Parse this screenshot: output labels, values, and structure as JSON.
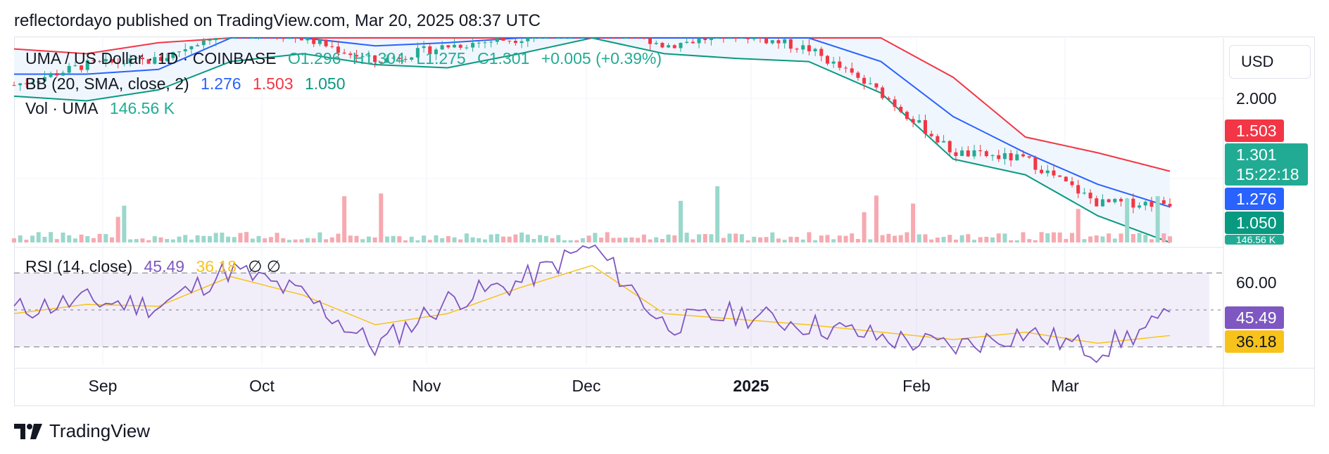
{
  "header": {
    "text": "reflectordayo published on TradingView.com, Mar 20, 2025 08:37 UTC"
  },
  "legend": {
    "symbol": "UMA / US Dollar · 1D · COINBASE",
    "open": "O1.296",
    "high": "H1.304",
    "low": "L1.275",
    "close": "C1.301",
    "change": "+0.005 (+0.39%)",
    "bb_label": "BB (20, SMA, close, 2)",
    "bb_basis": "1.276",
    "bb_upper": "1.503",
    "bb_lower": "1.050",
    "vol_label": "Vol · UMA",
    "vol_value": "146.56 K",
    "rsi_label": "RSI (14, close)",
    "rsi_value": "45.49",
    "rsi_ma": "36.18",
    "rsi_extra": "∅ ∅"
  },
  "currency": "USD",
  "price_axis": {
    "level_1": "2.000",
    "level_2": "60.00"
  },
  "price_tags": {
    "upper": "1.503",
    "last": "1.301",
    "countdown": "15:22:18",
    "basis": "1.276",
    "lower": "1.050",
    "volume": "146.56 K",
    "rsi": "45.49",
    "rsi_ma": "36.18"
  },
  "x_axis": [
    "Sep",
    "Oct",
    "Nov",
    "Dec",
    "2025",
    "Feb",
    "Mar"
  ],
  "colors": {
    "up": "#22ab94",
    "down": "#f23645",
    "basis": "#2962ff",
    "upper": "#f23645",
    "lower": "#089981",
    "rsi": "#7e57c2",
    "rsi_ma": "#f7c31b",
    "band_fill": "#f0f6fd"
  },
  "footer": {
    "brand": "TradingView"
  },
  "chart_data": {
    "type": "line",
    "title": "UMA / US Dollar · 1D · COINBASE",
    "x_ticks": [
      "Sep",
      "Oct",
      "Nov",
      "Dec",
      "2025",
      "Feb",
      "Mar"
    ],
    "price_range": [
      1.05,
      2.35
    ],
    "rsi_range": [
      20,
      80
    ],
    "series": [
      {
        "name": "Price",
        "x": [
          "Aug 20",
          "Sep 1",
          "Sep 15",
          "Oct 1",
          "Oct 15",
          "Nov 1",
          "Nov 15",
          "Dec 1",
          "Dec 8",
          "Dec 15",
          "Jan 1",
          "Jan 15",
          "Feb 1",
          "Feb 8",
          "Feb 25",
          "Mar 10",
          "Mar 20"
        ],
        "values": [
          2.05,
          2.18,
          2.21,
          2.42,
          2.35,
          2.2,
          2.3,
          2.35,
          2.5,
          2.3,
          2.38,
          2.28,
          2.0,
          1.62,
          1.58,
          1.3,
          1.301
        ]
      },
      {
        "name": "BB Upper",
        "values": [
          2.28,
          2.25,
          2.32,
          2.6,
          2.55,
          2.45,
          2.5,
          2.6,
          2.8,
          2.6,
          2.55,
          2.45,
          2.38,
          2.1,
          1.72,
          1.62,
          1.503
        ]
      },
      {
        "name": "BB Basis",
        "values": [
          2.12,
          2.12,
          2.15,
          2.4,
          2.42,
          2.3,
          2.32,
          2.38,
          2.55,
          2.4,
          2.4,
          2.36,
          2.2,
          1.85,
          1.62,
          1.42,
          1.276
        ]
      },
      {
        "name": "BB Lower",
        "values": [
          1.98,
          1.95,
          2.02,
          2.2,
          2.25,
          2.18,
          2.16,
          2.25,
          2.45,
          2.25,
          2.22,
          2.2,
          2.0,
          1.58,
          1.48,
          1.22,
          1.05
        ]
      },
      {
        "name": "RSI (14, close)",
        "values": [
          50,
          55,
          52,
          72,
          58,
          30,
          55,
          65,
          85,
          42,
          48,
          42,
          35,
          30,
          38,
          28,
          45.49
        ]
      },
      {
        "name": "RSI MA",
        "values": [
          48,
          53,
          52,
          68,
          58,
          42,
          48,
          62,
          74,
          48,
          45,
          42,
          38,
          34,
          38,
          32,
          36.18
        ]
      }
    ]
  }
}
